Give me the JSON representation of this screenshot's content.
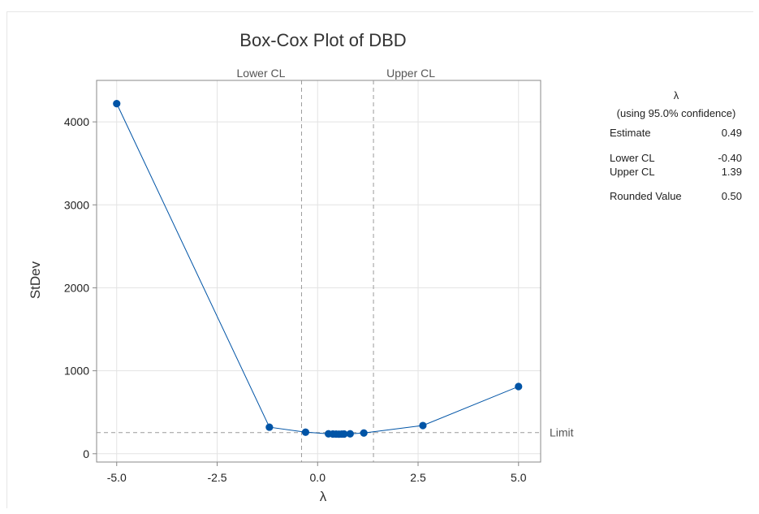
{
  "chart_data": {
    "type": "line",
    "title": "Box-Cox Plot of DBD",
    "xlabel": "λ",
    "ylabel": "StDev",
    "xlim": [
      -5.5,
      5.55
    ],
    "ylim": [
      -100,
      4500
    ],
    "xticks": [
      -5.0,
      -2.5,
      0.0,
      2.5,
      5.0
    ],
    "xtick_labels": [
      "-5.0",
      "-2.5",
      "0.0",
      "2.5",
      "5.0"
    ],
    "yticks": [
      0,
      1000,
      2000,
      3000,
      4000
    ],
    "ytick_labels": [
      "0",
      "1000",
      "2000",
      "3000",
      "4000"
    ],
    "grid": true,
    "series": [
      {
        "x": [
          -5.0,
          -1.2,
          -0.3,
          0.27,
          0.38,
          0.46,
          0.53,
          0.6,
          0.66,
          0.81,
          1.15,
          2.62,
          5.0
        ],
        "y": [
          4220,
          320,
          260,
          240,
          238,
          237,
          236,
          237,
          238,
          240,
          250,
          340,
          810
        ],
        "color": "#0054A6"
      }
    ],
    "reference_lines": {
      "lower_cl": {
        "x": -0.4,
        "label": "Lower CL"
      },
      "upper_cl": {
        "x": 1.39,
        "label": "Upper CL"
      },
      "limit": {
        "y": 255,
        "label": "Limit"
      }
    }
  },
  "stats": {
    "header": "λ",
    "subheader": "(using 95.0% confidence)",
    "rows": [
      {
        "label": "Estimate",
        "value": "0.49"
      },
      {
        "label": "Lower CL",
        "value": "-0.40"
      },
      {
        "label": "Upper CL",
        "value": "1.39"
      },
      {
        "label": "Rounded Value",
        "value": "0.50"
      }
    ]
  },
  "colors": {
    "series": "#0054A6",
    "grid": "#e3e3e3",
    "reference": "#9a9a9a",
    "axis": "#888888"
  }
}
